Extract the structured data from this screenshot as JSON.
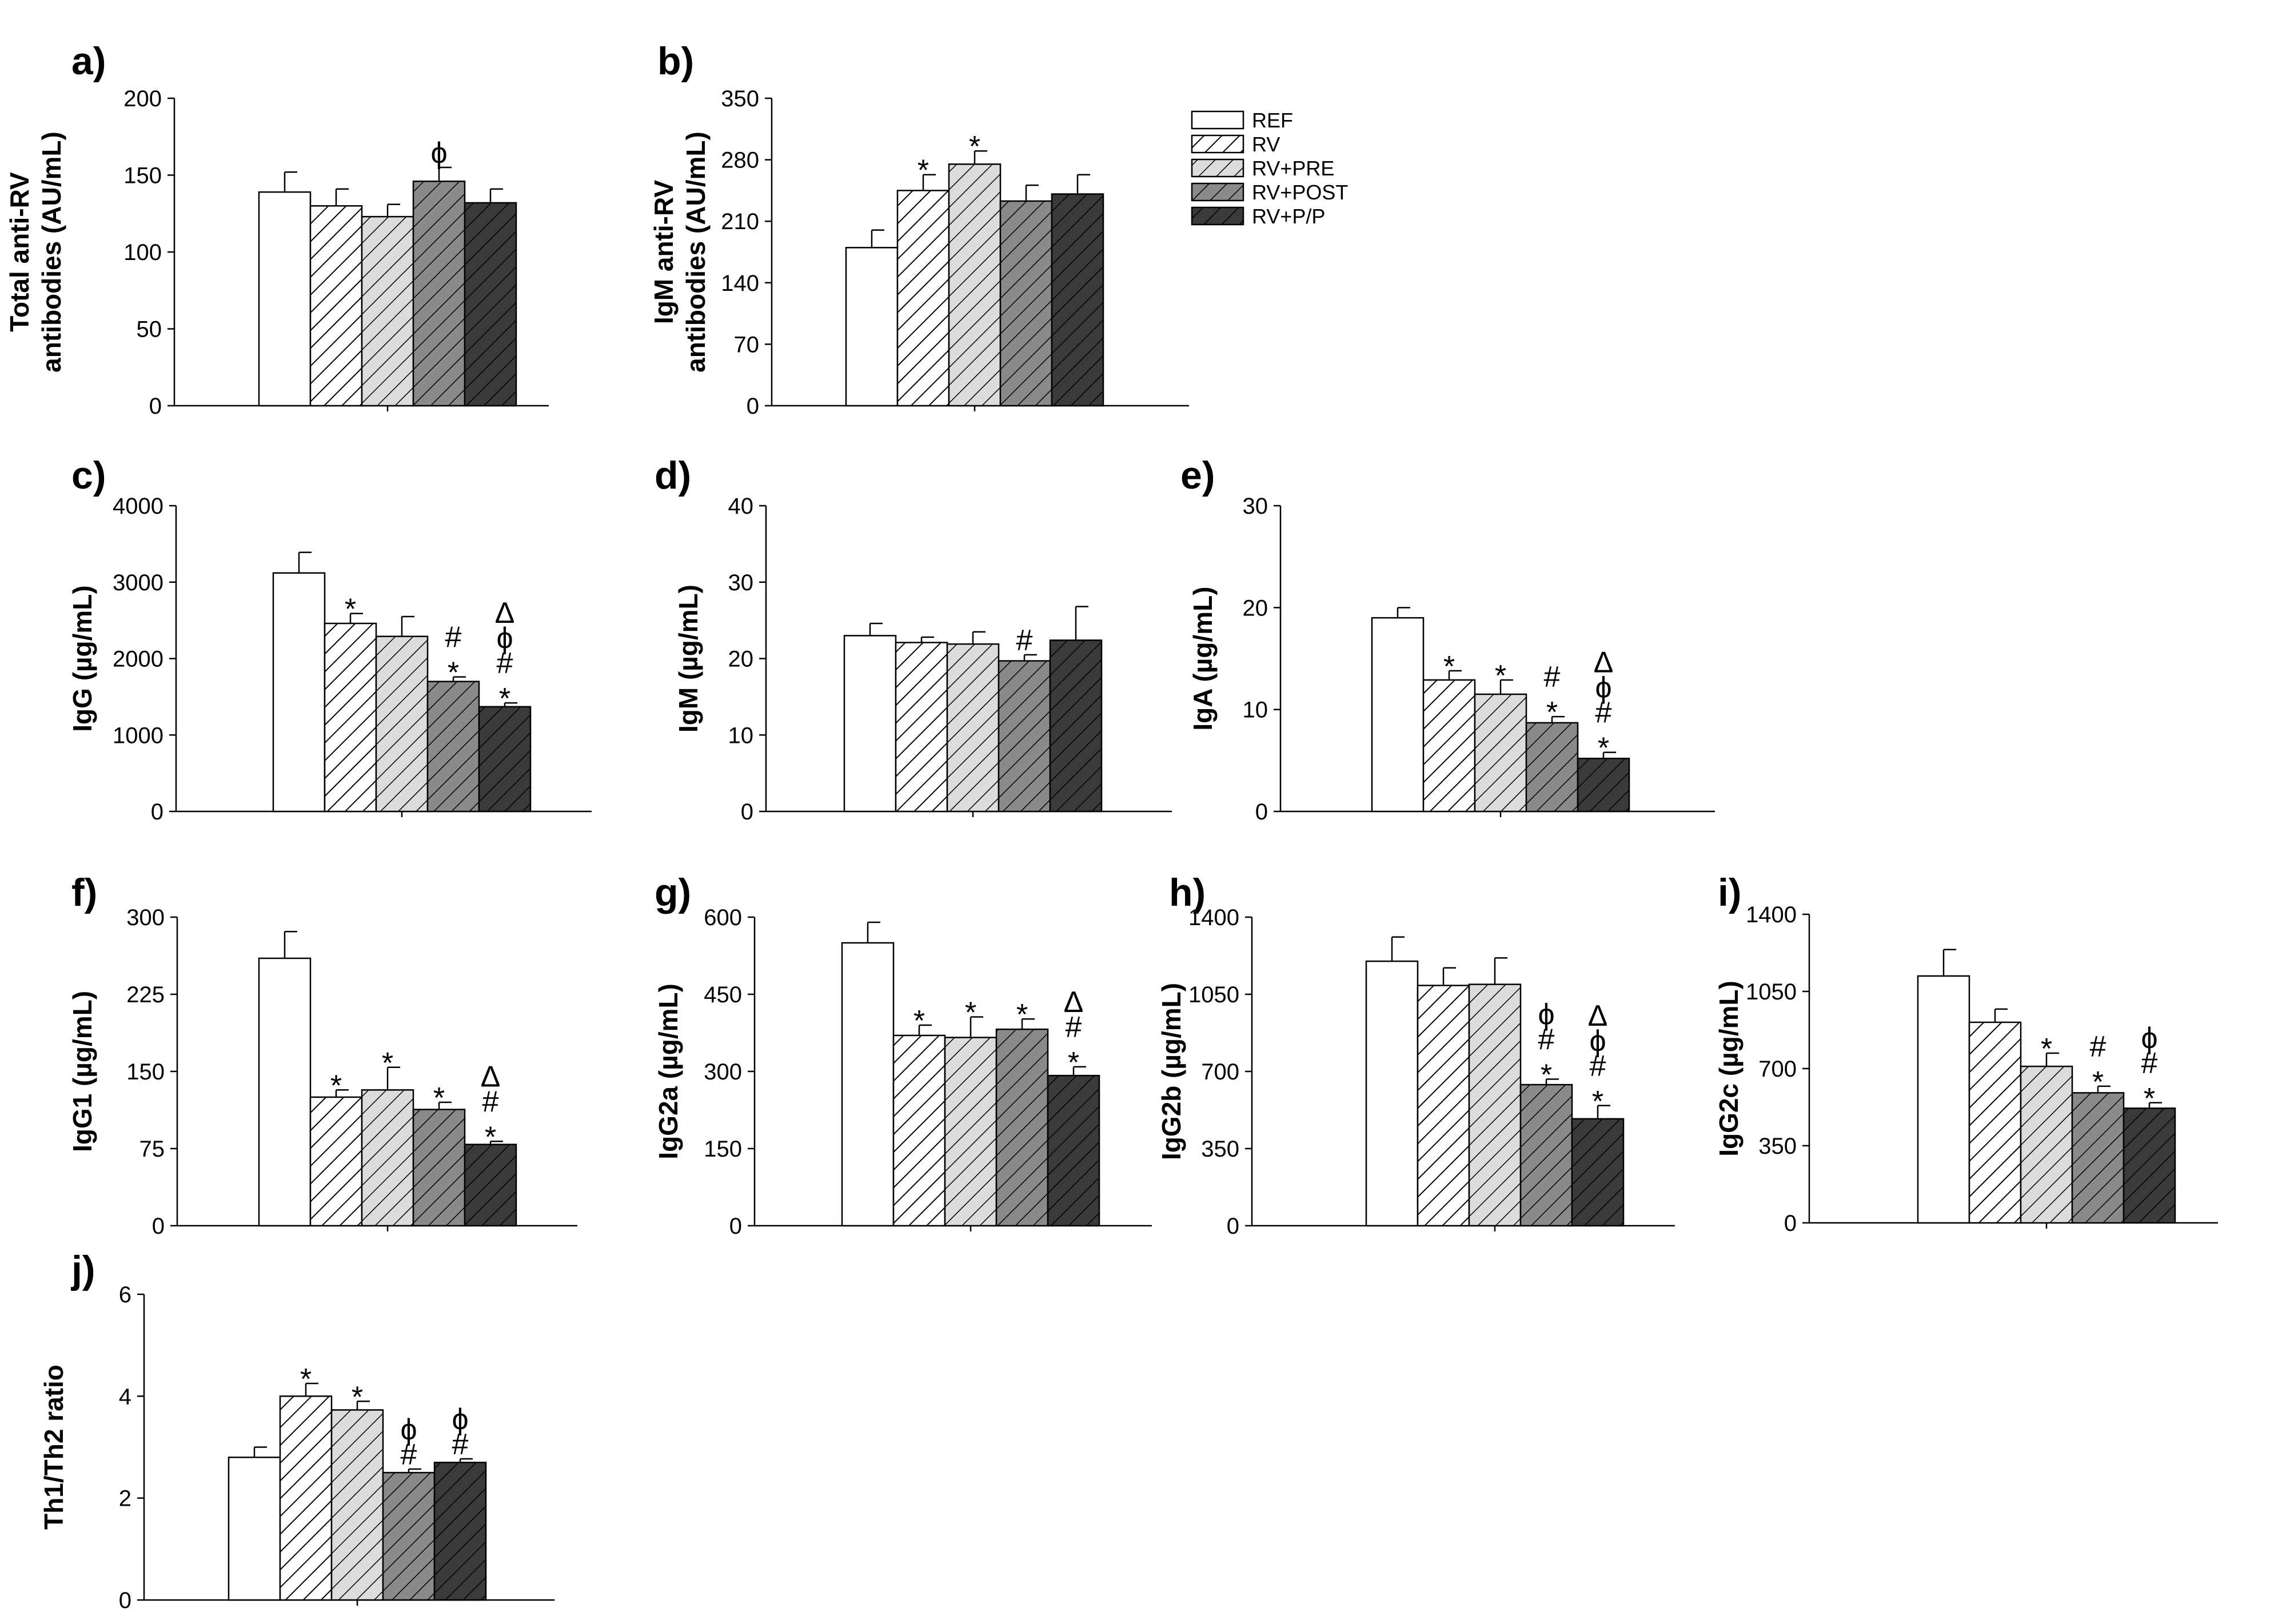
{
  "groups": [
    {
      "name": "REF",
      "pattern": "solid",
      "color": "#ffffff"
    },
    {
      "name": "RV",
      "pattern": "hatch",
      "color": "#ffffff"
    },
    {
      "name": "RV+PRE",
      "pattern": "hatch",
      "color": "#dcdcdc"
    },
    {
      "name": "RV+POST",
      "pattern": "hatch",
      "color": "#8a8a8a"
    },
    {
      "name": "RV+P/P",
      "pattern": "hatch",
      "color": "#3a3a3a"
    }
  ],
  "chart_data": [
    {
      "type": "bar",
      "panel": "a)",
      "ylabel_lines": [
        "Total anti-RV",
        "antibodies (AU/mL)"
      ],
      "ylim": [
        0,
        200
      ],
      "yticks": [
        0,
        50,
        100,
        150,
        200
      ],
      "categories": [
        "REF",
        "RV",
        "RV+PRE",
        "RV+POST",
        "RV+P/P"
      ],
      "values": [
        139,
        130,
        123,
        146,
        132
      ],
      "errors": [
        13,
        11,
        8,
        9,
        9
      ],
      "annotations": [
        [],
        [],
        [],
        [
          "ϕ"
        ],
        []
      ]
    },
    {
      "type": "bar",
      "panel": "b)",
      "ylabel_lines": [
        "IgM anti-RV",
        "antibodies (AU/mL)"
      ],
      "ylim": [
        0,
        350
      ],
      "yticks": [
        0,
        70,
        140,
        210,
        280,
        350
      ],
      "categories": [
        "REF",
        "RV",
        "RV+PRE",
        "RV+POST",
        "RV+P/P"
      ],
      "values": [
        180,
        245,
        275,
        233,
        241
      ],
      "errors": [
        20,
        18,
        15,
        18,
        22
      ],
      "annotations": [
        [],
        [
          "*"
        ],
        [
          "*"
        ],
        [],
        []
      ]
    },
    {
      "type": "bar",
      "panel": "c)",
      "ylabel_lines": [
        "IgG (µg/mL)"
      ],
      "ylim": [
        0,
        4000
      ],
      "yticks": [
        0,
        1000,
        2000,
        3000,
        4000
      ],
      "categories": [
        "REF",
        "RV",
        "RV+PRE",
        "RV+POST",
        "RV+P/P"
      ],
      "values": [
        3120,
        2460,
        2290,
        1700,
        1370
      ],
      "errors": [
        270,
        130,
        260,
        60,
        50
      ],
      "annotations": [
        [],
        [
          "*"
        ],
        [],
        [
          "#",
          "*"
        ],
        [
          "Δ",
          "ϕ",
          "#",
          "*"
        ]
      ]
    },
    {
      "type": "bar",
      "panel": "d)",
      "ylabel_lines": [
        "IgM (µg/mL)"
      ],
      "ylim": [
        0,
        40
      ],
      "yticks": [
        0,
        10,
        20,
        30,
        40
      ],
      "categories": [
        "REF",
        "RV",
        "RV+PRE",
        "RV+POST",
        "RV+P/P"
      ],
      "values": [
        23,
        22.1,
        21.9,
        19.7,
        22.4
      ],
      "errors": [
        1.6,
        0.7,
        1.6,
        0.8,
        4.4
      ],
      "annotations": [
        [],
        [],
        [],
        [
          "#"
        ],
        []
      ]
    },
    {
      "type": "bar",
      "panel": "e)",
      "ylabel_lines": [
        "IgA (µg/mL)"
      ],
      "ylim": [
        0,
        30
      ],
      "yticks": [
        0,
        10,
        20,
        30
      ],
      "categories": [
        "REF",
        "RV",
        "RV+PRE",
        "RV+POST",
        "RV+P/P"
      ],
      "values": [
        19,
        12.9,
        11.5,
        8.7,
        5.2
      ],
      "errors": [
        1,
        0.9,
        1.4,
        0.6,
        0.6
      ],
      "annotations": [
        [],
        [
          "*"
        ],
        [
          "*"
        ],
        [
          "#",
          "*"
        ],
        [
          "Δ",
          "ϕ",
          "#",
          "*"
        ]
      ]
    },
    {
      "type": "bar",
      "panel": "f)",
      "ylabel_lines": [
        "IgG1 (µg/mL)"
      ],
      "ylim": [
        0,
        300
      ],
      "yticks": [
        0,
        75,
        150,
        225,
        300
      ],
      "categories": [
        "REF",
        "RV",
        "RV+PRE",
        "RV+POST",
        "RV+P/P"
      ],
      "values": [
        260,
        125,
        132,
        113,
        79
      ],
      "errors": [
        26,
        7,
        22,
        7,
        3
      ],
      "annotations": [
        [],
        [
          "*"
        ],
        [
          "*"
        ],
        [
          "*"
        ],
        [
          "Δ",
          "#",
          "*"
        ]
      ]
    },
    {
      "type": "bar",
      "panel": "g)",
      "ylabel_lines": [
        "IgG2a (µg/mL)"
      ],
      "ylim": [
        0,
        600
      ],
      "yticks": [
        0,
        150,
        300,
        450,
        600
      ],
      "categories": [
        "REF",
        "RV",
        "RV+PRE",
        "RV+POST",
        "RV+P/P"
      ],
      "values": [
        550,
        370,
        366,
        382,
        292
      ],
      "errors": [
        40,
        20,
        40,
        20,
        17
      ],
      "annotations": [
        [],
        [
          "*"
        ],
        [
          "*"
        ],
        [
          "*"
        ],
        [
          "Δ",
          "#",
          "*"
        ]
      ]
    },
    {
      "type": "bar",
      "panel": "h)",
      "ylabel_lines": [
        "IgG2b (µg/mL)"
      ],
      "ylim": [
        0,
        1400
      ],
      "yticks": [
        0,
        350,
        700,
        1050,
        1400
      ],
      "categories": [
        "REF",
        "RV",
        "RV+PRE",
        "RV+POST",
        "RV+P/P"
      ],
      "values": [
        1200,
        1090,
        1095,
        640,
        485
      ],
      "errors": [
        110,
        80,
        120,
        25,
        60
      ],
      "annotations": [
        [],
        [],
        [],
        [
          "ϕ",
          "#",
          "*"
        ],
        [
          "Δ",
          "ϕ",
          "#",
          "*"
        ]
      ]
    },
    {
      "type": "bar",
      "panel": "i)",
      "ylabel_lines": [
        "IgG2c (µg/mL)"
      ],
      "ylim": [
        0,
        1400
      ],
      "yticks": [
        0,
        350,
        700,
        1050,
        1400
      ],
      "categories": [
        "REF",
        "RV",
        "RV+PRE",
        "RV+POST",
        "RV+P/P"
      ],
      "values": [
        1120,
        910,
        710,
        590,
        520
      ],
      "errors": [
        120,
        60,
        60,
        30,
        25
      ],
      "annotations": [
        [],
        [],
        [
          "*"
        ],
        [
          "#",
          "*"
        ],
        [
          "ϕ",
          "#",
          "*"
        ]
      ]
    },
    {
      "type": "bar",
      "panel": "j)",
      "ylabel_lines": [
        "Th1/Th2 ratio"
      ],
      "ylim": [
        0,
        6
      ],
      "yticks": [
        0,
        2,
        4,
        6
      ],
      "categories": [
        "REF",
        "RV",
        "RV+PRE",
        "RV+POST",
        "RV+P/P"
      ],
      "values": [
        2.8,
        4.0,
        3.73,
        2.5,
        2.7
      ],
      "errors": [
        0.2,
        0.25,
        0.17,
        0.07,
        0.07
      ],
      "annotations": [
        [],
        [
          "*"
        ],
        [
          "*"
        ],
        [
          "ϕ",
          "#"
        ],
        [
          "ϕ",
          "#"
        ]
      ]
    }
  ]
}
